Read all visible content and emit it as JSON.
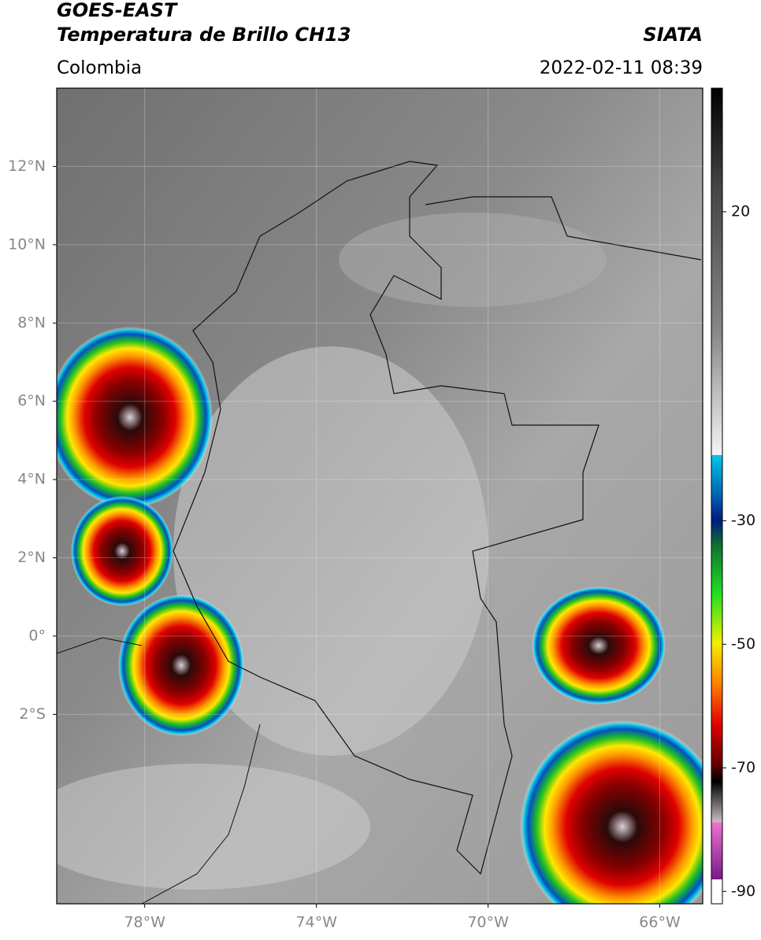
{
  "header": {
    "title": "GOES-EAST",
    "subtitle": "Temperatura de Brillo CH13",
    "source": "SIATA",
    "region": "Colombia",
    "datetime": "2022-02-11 08:39"
  },
  "map": {
    "xlim": [
      -80.05,
      -65.0
    ],
    "ylim": [
      -6.84,
      14.0
    ],
    "xticks": [
      {
        "value": -78,
        "label": "78°W"
      },
      {
        "value": -74,
        "label": "74°W"
      },
      {
        "value": -70,
        "label": "70°W"
      },
      {
        "value": -66,
        "label": "66°W"
      }
    ],
    "yticks": [
      {
        "value": 12,
        "label": "12°N"
      },
      {
        "value": 10,
        "label": "10°N"
      },
      {
        "value": 8,
        "label": "8°N"
      },
      {
        "value": 6,
        "label": "6°N"
      },
      {
        "value": 4,
        "label": "4°N"
      },
      {
        "value": 2,
        "label": "2°N"
      },
      {
        "value": 0,
        "label": "0°"
      },
      {
        "value": -2,
        "label": "2°S"
      }
    ],
    "grid": true
  },
  "colorbar": {
    "lim": [
      -92,
      40
    ],
    "ticks": [
      20,
      -30,
      -50,
      -70,
      -90
    ]
  }
}
